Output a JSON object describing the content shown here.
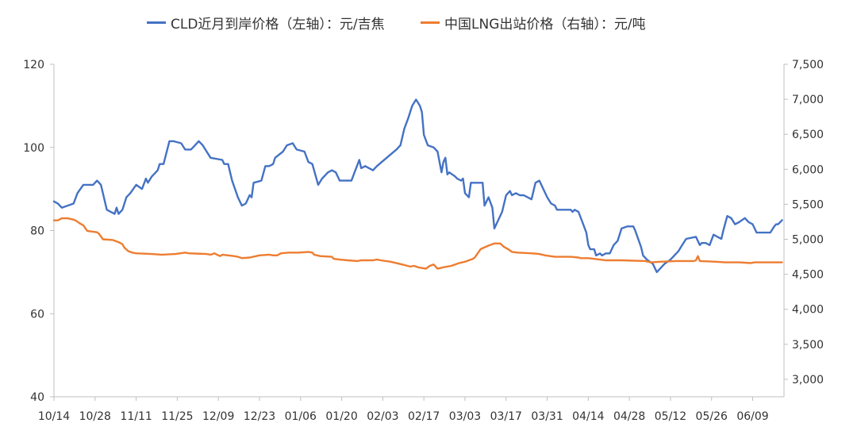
{
  "chart_data": {
    "type": "line",
    "title": "",
    "xlabel": "",
    "ylabel": "",
    "x_tick_labels": [
      "10/14",
      "10/28",
      "11/11",
      "11/25",
      "12/09",
      "12/23",
      "01/06",
      "01/20",
      "02/03",
      "02/17",
      "03/03",
      "03/17",
      "03/31",
      "04/14",
      "04/28",
      "05/12",
      "05/26",
      "06/09"
    ],
    "x_range": [
      "10/14",
      "06/09"
    ],
    "y_left": {
      "lim": [
        40,
        120
      ],
      "ticks": [
        "40",
        "60",
        "80",
        "100",
        "120"
      ]
    },
    "y_right": {
      "lim": [
        2750,
        7500
      ],
      "ticks": [
        "3,000",
        "3,500",
        "4,000",
        "4,500",
        "5,000",
        "5,500",
        "6,000",
        "6,500",
        "7,000",
        "7,500"
      ]
    },
    "grid": false,
    "legend_position": "top",
    "series": [
      {
        "name": "CLD近月到岸价格（左轴）：元/吉焦",
        "axis": "left",
        "color": "#4472C4",
        "points": [
          [
            0,
            87
          ],
          [
            2,
            86.5
          ],
          [
            4,
            85.5
          ],
          [
            7,
            86
          ],
          [
            10,
            86.5
          ],
          [
            12,
            89
          ],
          [
            15,
            91
          ],
          [
            20,
            91
          ],
          [
            22,
            92
          ],
          [
            24,
            91
          ],
          [
            27,
            85
          ],
          [
            29,
            84.5
          ],
          [
            31,
            84
          ],
          [
            32,
            85.5
          ],
          [
            33,
            84
          ],
          [
            35,
            85
          ],
          [
            37,
            88
          ],
          [
            39,
            89
          ],
          [
            42,
            91
          ],
          [
            45,
            90
          ],
          [
            47,
            92.5
          ],
          [
            48,
            91.5
          ],
          [
            50,
            93
          ],
          [
            53,
            94.5
          ],
          [
            54,
            96
          ],
          [
            56,
            96
          ],
          [
            59,
            101.5
          ],
          [
            61,
            101.5
          ],
          [
            65,
            101
          ],
          [
            67,
            99.5
          ],
          [
            70,
            99.5
          ],
          [
            74,
            101.5
          ],
          [
            76,
            100.5
          ],
          [
            80,
            97.5
          ],
          [
            86,
            97
          ],
          [
            87,
            96
          ],
          [
            89,
            96
          ],
          [
            90,
            94
          ],
          [
            91,
            92
          ],
          [
            94,
            88
          ],
          [
            96,
            86
          ],
          [
            98,
            86.5
          ],
          [
            100,
            88.5
          ],
          [
            101,
            88
          ],
          [
            102,
            91.5
          ],
          [
            106,
            92
          ],
          [
            108,
            95.5
          ],
          [
            110,
            95.5
          ],
          [
            112,
            96
          ],
          [
            113,
            97.5
          ],
          [
            117,
            99
          ],
          [
            119,
            100.5
          ],
          [
            122,
            101
          ],
          [
            124,
            99.5
          ],
          [
            128,
            99
          ],
          [
            130,
            96.5
          ],
          [
            132,
            96
          ],
          [
            135,
            91
          ],
          [
            137,
            92.5
          ],
          [
            140,
            94
          ],
          [
            142,
            94.5
          ],
          [
            144,
            94
          ],
          [
            146,
            92
          ],
          [
            150,
            92
          ],
          [
            152,
            92
          ],
          [
            154,
            94.5
          ],
          [
            156,
            97
          ],
          [
            157,
            95
          ],
          [
            159,
            95.5
          ],
          [
            161,
            95
          ],
          [
            163,
            94.5
          ],
          [
            165,
            95.5
          ],
          [
            170,
            97.5
          ],
          [
            175,
            99.5
          ],
          [
            177,
            100.5
          ],
          [
            179,
            104.5
          ],
          [
            181,
            107
          ],
          [
            183,
            110
          ],
          [
            185,
            111.5
          ],
          [
            187,
            110
          ],
          [
            188,
            108.5
          ],
          [
            189,
            103
          ],
          [
            191,
            100.5
          ],
          [
            194,
            100
          ],
          [
            196,
            99
          ],
          [
            198,
            94
          ],
          [
            199,
            96.5
          ],
          [
            200,
            97.5
          ],
          [
            201,
            93.5
          ],
          [
            202,
            94
          ],
          [
            205,
            93
          ],
          [
            206,
            92.5
          ],
          [
            208,
            92
          ],
          [
            209,
            92.5
          ],
          [
            210,
            89
          ],
          [
            212,
            88
          ],
          [
            213,
            91.5
          ],
          [
            219,
            91.5
          ],
          [
            220,
            86
          ],
          [
            222,
            88
          ],
          [
            224,
            85.5
          ],
          [
            225,
            80.5
          ],
          [
            229,
            84.5
          ],
          [
            231,
            88.5
          ],
          [
            233,
            89.5
          ],
          [
            234,
            88.5
          ],
          [
            236,
            89
          ],
          [
            238,
            88.5
          ],
          [
            240,
            88.5
          ],
          [
            242,
            88
          ],
          [
            244,
            87.5
          ],
          [
            246,
            91.5
          ],
          [
            248,
            92
          ],
          [
            249,
            91
          ],
          [
            252,
            88
          ],
          [
            254,
            86.5
          ],
          [
            256,
            86
          ],
          [
            257,
            85
          ],
          [
            260,
            85
          ],
          [
            264,
            85
          ],
          [
            265,
            84.5
          ],
          [
            266,
            85
          ],
          [
            268,
            84.5
          ],
          [
            270,
            82
          ],
          [
            272,
            79.5
          ],
          [
            273,
            76.5
          ],
          [
            274,
            75.5
          ],
          [
            275,
            75.5
          ],
          [
            276,
            75.5
          ],
          [
            277,
            74
          ],
          [
            279,
            74.5
          ],
          [
            280,
            74
          ],
          [
            282,
            74.5
          ],
          [
            284,
            74.5
          ],
          [
            286,
            76.5
          ],
          [
            288,
            77.5
          ],
          [
            290,
            80.5
          ],
          [
            293,
            81
          ],
          [
            296,
            81
          ],
          [
            297,
            80
          ],
          [
            300,
            76
          ],
          [
            301,
            74
          ],
          [
            303,
            73
          ],
          [
            306,
            72
          ],
          [
            308,
            70
          ],
          [
            312,
            72
          ],
          [
            315,
            73
          ],
          [
            318,
            74.5
          ],
          [
            319,
            75
          ],
          [
            321,
            76.5
          ],
          [
            323,
            78
          ],
          [
            328,
            78.5
          ],
          [
            330,
            76.5
          ],
          [
            331,
            77
          ],
          [
            333,
            77
          ],
          [
            335,
            76.5
          ],
          [
            337,
            79
          ],
          [
            339,
            78.5
          ],
          [
            341,
            78
          ],
          [
            342,
            80
          ],
          [
            344,
            83.5
          ],
          [
            346,
            83
          ],
          [
            348,
            81.5
          ],
          [
            350,
            82
          ],
          [
            353,
            83
          ],
          [
            355,
            82
          ],
          [
            357,
            81.5
          ],
          [
            359,
            79.5
          ],
          [
            365,
            79.5
          ],
          [
            366,
            79.5
          ],
          [
            368,
            81
          ],
          [
            369,
            81.5
          ],
          [
            370,
            81.5
          ],
          [
            372,
            82.5
          ]
        ]
      },
      {
        "name": "中国LNG出站价格（右轴）：元/吨",
        "axis": "right",
        "color": "#ED7D31",
        "points": [
          [
            0,
            5270
          ],
          [
            2,
            5270
          ],
          [
            4,
            5300
          ],
          [
            7,
            5300
          ],
          [
            10,
            5280
          ],
          [
            11,
            5270
          ],
          [
            13,
            5230
          ],
          [
            15,
            5200
          ],
          [
            17,
            5120
          ],
          [
            22,
            5100
          ],
          [
            23,
            5080
          ],
          [
            25,
            5000
          ],
          [
            30,
            4990
          ],
          [
            33,
            4960
          ],
          [
            35,
            4930
          ],
          [
            36,
            4880
          ],
          [
            38,
            4830
          ],
          [
            40,
            4810
          ],
          [
            42,
            4800
          ],
          [
            50,
            4790
          ],
          [
            55,
            4780
          ],
          [
            62,
            4790
          ],
          [
            67,
            4810
          ],
          [
            69,
            4800
          ],
          [
            78,
            4790
          ],
          [
            80,
            4780
          ],
          [
            81,
            4790
          ],
          [
            82,
            4800
          ],
          [
            84,
            4770
          ],
          [
            85,
            4760
          ],
          [
            86,
            4780
          ],
          [
            92,
            4760
          ],
          [
            94,
            4750
          ],
          [
            96,
            4730
          ],
          [
            100,
            4740
          ],
          [
            105,
            4770
          ],
          [
            110,
            4780
          ],
          [
            112,
            4770
          ],
          [
            114,
            4770
          ],
          [
            116,
            4800
          ],
          [
            120,
            4810
          ],
          [
            125,
            4810
          ],
          [
            130,
            4820
          ],
          [
            132,
            4810
          ],
          [
            133,
            4780
          ],
          [
            136,
            4760
          ],
          [
            142,
            4750
          ],
          [
            143,
            4720
          ],
          [
            146,
            4710
          ],
          [
            150,
            4700
          ],
          [
            155,
            4690
          ],
          [
            157,
            4700
          ],
          [
            163,
            4700
          ],
          [
            165,
            4710
          ],
          [
            167,
            4700
          ],
          [
            172,
            4680
          ],
          [
            178,
            4640
          ],
          [
            182,
            4610
          ],
          [
            184,
            4620
          ],
          [
            186,
            4600
          ],
          [
            190,
            4580
          ],
          [
            192,
            4620
          ],
          [
            194,
            4640
          ],
          [
            196,
            4580
          ],
          [
            199,
            4600
          ],
          [
            203,
            4620
          ],
          [
            207,
            4660
          ],
          [
            210,
            4680
          ],
          [
            214,
            4720
          ],
          [
            215,
            4740
          ],
          [
            218,
            4860
          ],
          [
            222,
            4910
          ],
          [
            225,
            4940
          ],
          [
            228,
            4940
          ],
          [
            230,
            4890
          ],
          [
            232,
            4860
          ],
          [
            234,
            4820
          ],
          [
            237,
            4810
          ],
          [
            244,
            4800
          ],
          [
            248,
            4790
          ],
          [
            251,
            4770
          ],
          [
            256,
            4750
          ],
          [
            264,
            4750
          ],
          [
            268,
            4740
          ],
          [
            269,
            4730
          ],
          [
            273,
            4730
          ],
          [
            276,
            4720
          ],
          [
            282,
            4700
          ],
          [
            290,
            4700
          ],
          [
            302,
            4690
          ],
          [
            305,
            4670
          ],
          [
            310,
            4680
          ],
          [
            318,
            4690
          ],
          [
            324,
            4690
          ],
          [
            327,
            4690
          ],
          [
            328,
            4700
          ],
          [
            329,
            4760
          ],
          [
            330,
            4690
          ],
          [
            338,
            4680
          ],
          [
            343,
            4670
          ],
          [
            350,
            4670
          ],
          [
            356,
            4660
          ],
          [
            358,
            4670
          ],
          [
            360,
            4670
          ],
          [
            372,
            4670
          ]
        ]
      }
    ]
  }
}
